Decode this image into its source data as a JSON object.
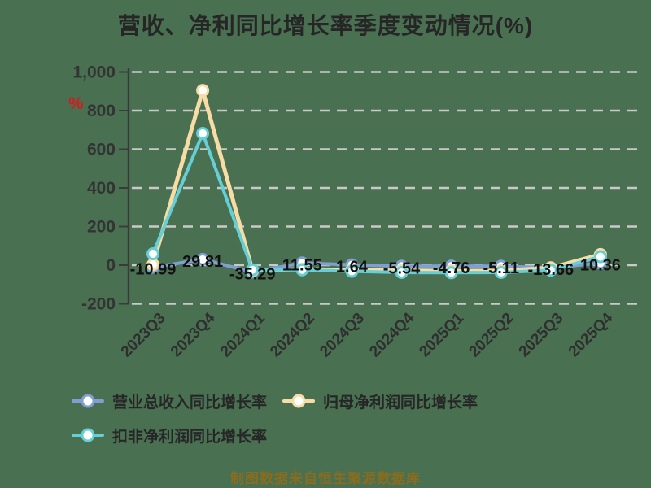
{
  "title": "营收、净利同比增长率季度变动情况(%)",
  "y_axis_unit": "%",
  "source_note": "制图数据来自恒生聚源数据库",
  "colors": {
    "background": "#4a7052",
    "grid": "#c9c9c9",
    "axis": "#3a3a3a",
    "title_text": "#262626",
    "axis_tick_text": "#333333",
    "x_tick_text": "#2f2f2f",
    "data_label_text": "#111111",
    "unit_text": "#cf1d1d",
    "legend_text": "#262626",
    "source_text": "#8a6c1e",
    "marker_fill": "#ffffff",
    "series_blue": "#7f9fd2",
    "series_wheat": "#f7dca5",
    "series_teal": "#66cfd5"
  },
  "chart_data": {
    "type": "line",
    "title": "营收、净利同比增长率季度变动情况(%)",
    "categories": [
      "2023Q3",
      "2023Q4",
      "2024Q1",
      "2024Q2",
      "2024Q3",
      "2024Q4",
      "2025Q1",
      "2025Q2",
      "2025Q3",
      "2025Q4"
    ],
    "series": [
      {
        "name": "营业总收入同比增长率",
        "slug": "revenue-growth",
        "color": "#7f9fd2",
        "values": [
          -10.99,
          29.81,
          -35.29,
          11.55,
          1.64,
          -5.54,
          -4.76,
          -5.11,
          -13.66,
          10.36
        ],
        "show_labels": true
      },
      {
        "name": "归母净利润同比增长率",
        "slug": "net-profit-growth",
        "color": "#f7dca5",
        "values": [
          3,
          905,
          -28,
          -20,
          -26,
          -28,
          -30,
          -29,
          -14,
          55
        ],
        "show_labels": false
      },
      {
        "name": "扣非净利润同比增长率",
        "slug": "non-gaap-net-profit-growth",
        "color": "#66cfd5",
        "values": [
          59,
          682,
          -24,
          -24,
          -32,
          -38,
          -39,
          -38,
          -26,
          44
        ],
        "show_labels": false
      }
    ],
    "data_labels": [
      "-10.99",
      "29.81",
      "-35.29",
      "11.55",
      "1.64",
      "-5.54",
      "-4.76",
      "-5.11",
      "-13.66",
      "10.36"
    ],
    "ylim": [
      -200,
      1000
    ],
    "yticks": [
      1000,
      800,
      600,
      400,
      200,
      0,
      -200
    ],
    "ytick_labels": [
      "1,000",
      "800",
      "600",
      "400",
      "200",
      "0",
      "-200"
    ],
    "grid": "horizontal-dashed",
    "legend_position": "bottom-left",
    "marker": "circle-white-fill"
  }
}
